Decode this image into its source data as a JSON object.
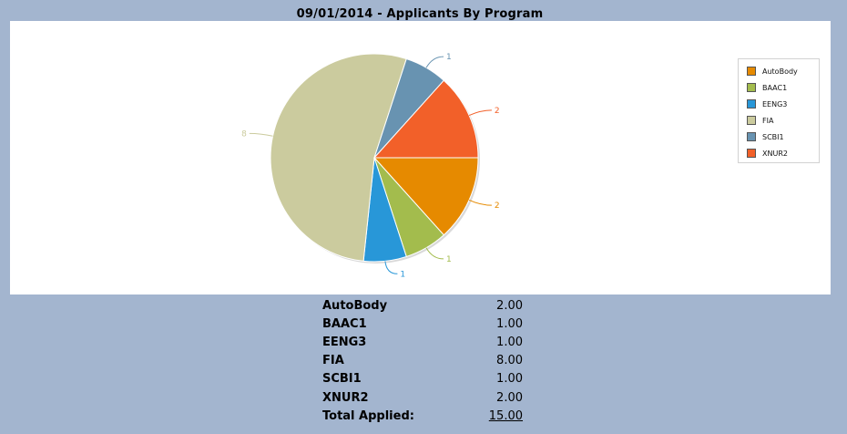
{
  "page": {
    "background": "#a3b5cf"
  },
  "chart_data": {
    "type": "pie",
    "title": "09/01/2014 - Applicants By Program",
    "categories": [
      "AutoBody",
      "BAAC1",
      "EENG3",
      "FIA",
      "SCBI1",
      "XNUR2"
    ],
    "values": [
      2,
      1,
      1,
      8,
      1,
      2
    ],
    "data_labels": [
      "2",
      "1",
      "1",
      "8",
      "1",
      "2"
    ],
    "colors": [
      "#e68a00",
      "#a3bc4d",
      "#2897d8",
      "#cbcb9e",
      "#6893b1",
      "#f26029"
    ],
    "start_angle_deg": 0,
    "direction": "clockwise",
    "legend": {
      "position": "right",
      "entries": [
        "AutoBody",
        "BAAC1",
        "EENG3",
        "FIA",
        "SCBI1",
        "XNUR2"
      ]
    }
  },
  "summary": {
    "rows": [
      {
        "name": "AutoBody",
        "value": "2.00"
      },
      {
        "name": "BAAC1",
        "value": "1.00"
      },
      {
        "name": "EENG3",
        "value": "1.00"
      },
      {
        "name": "FIA",
        "value": "8.00"
      },
      {
        "name": "SCBI1",
        "value": "1.00"
      },
      {
        "name": "XNUR2",
        "value": "2.00"
      }
    ],
    "total_label": "Total Applied:",
    "total_value": "15.00"
  }
}
